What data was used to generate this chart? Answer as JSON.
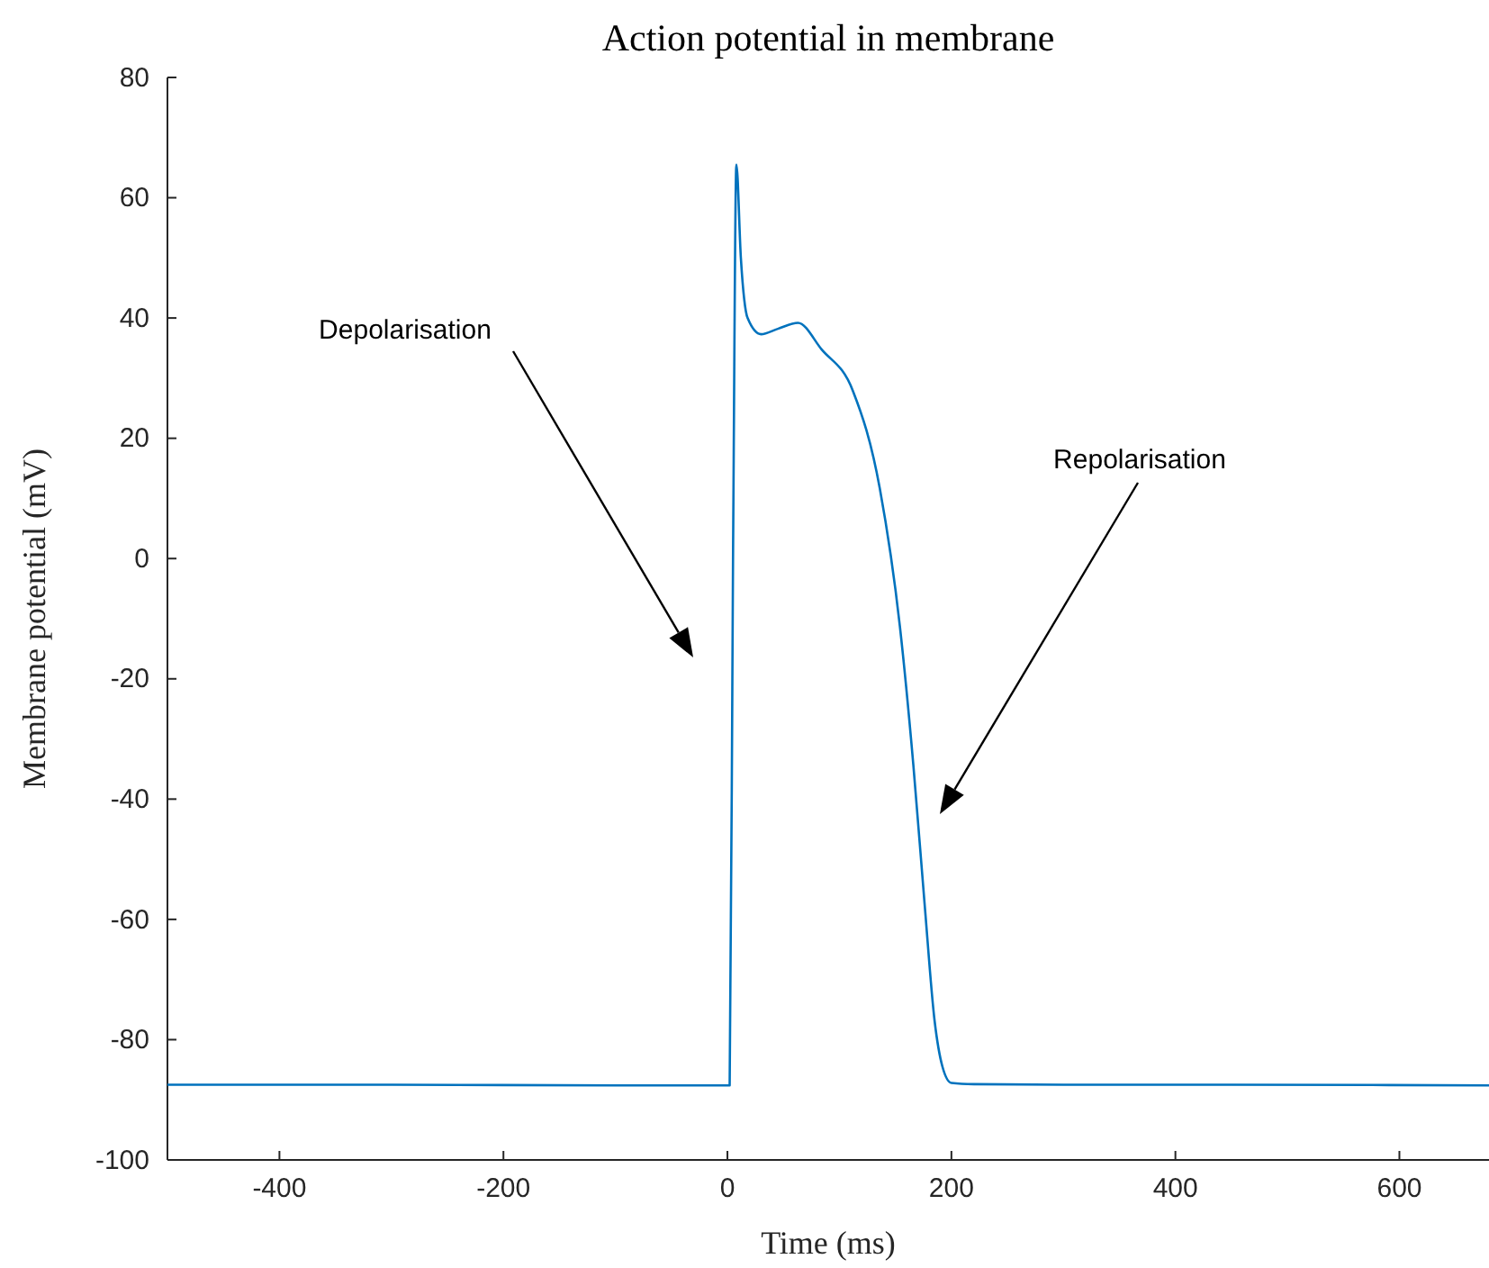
{
  "chart_data": {
    "type": "line",
    "title": "Action potential in membrane",
    "xlabel": "Time (ms)",
    "ylabel": "Membrane potential (mV)",
    "x": [
      -500,
      -300,
      -100,
      0,
      2,
      5,
      8,
      12,
      18,
      30,
      45,
      63,
      84,
      112,
      136,
      154,
      166,
      176,
      185,
      192,
      200,
      220,
      300,
      450,
      680
    ],
    "series": [
      {
        "color": "#0072bd",
        "values": [
          -87.5,
          -87.5,
          -87.6,
          -87.6,
          -87.6,
          0,
          65.5,
          50,
          40,
          37.3,
          38.2,
          39.2,
          34.8,
          27.9,
          11.7,
          -11.3,
          -34.3,
          -57.3,
          -76.9,
          -84.5,
          -87.2,
          -87.4,
          -87.5,
          -87.5,
          -87.6
        ]
      }
    ],
    "xlim": [
      -500,
      680
    ],
    "xticks": [
      -400,
      -200,
      0,
      200,
      400,
      600
    ],
    "ylim": [
      -100,
      80
    ],
    "yticks": [
      -100,
      -80,
      -60,
      -40,
      -20,
      0,
      20,
      40,
      60,
      80
    ],
    "grid": false,
    "annotations": [
      "Depolarisation",
      "Repolarisation"
    ]
  }
}
